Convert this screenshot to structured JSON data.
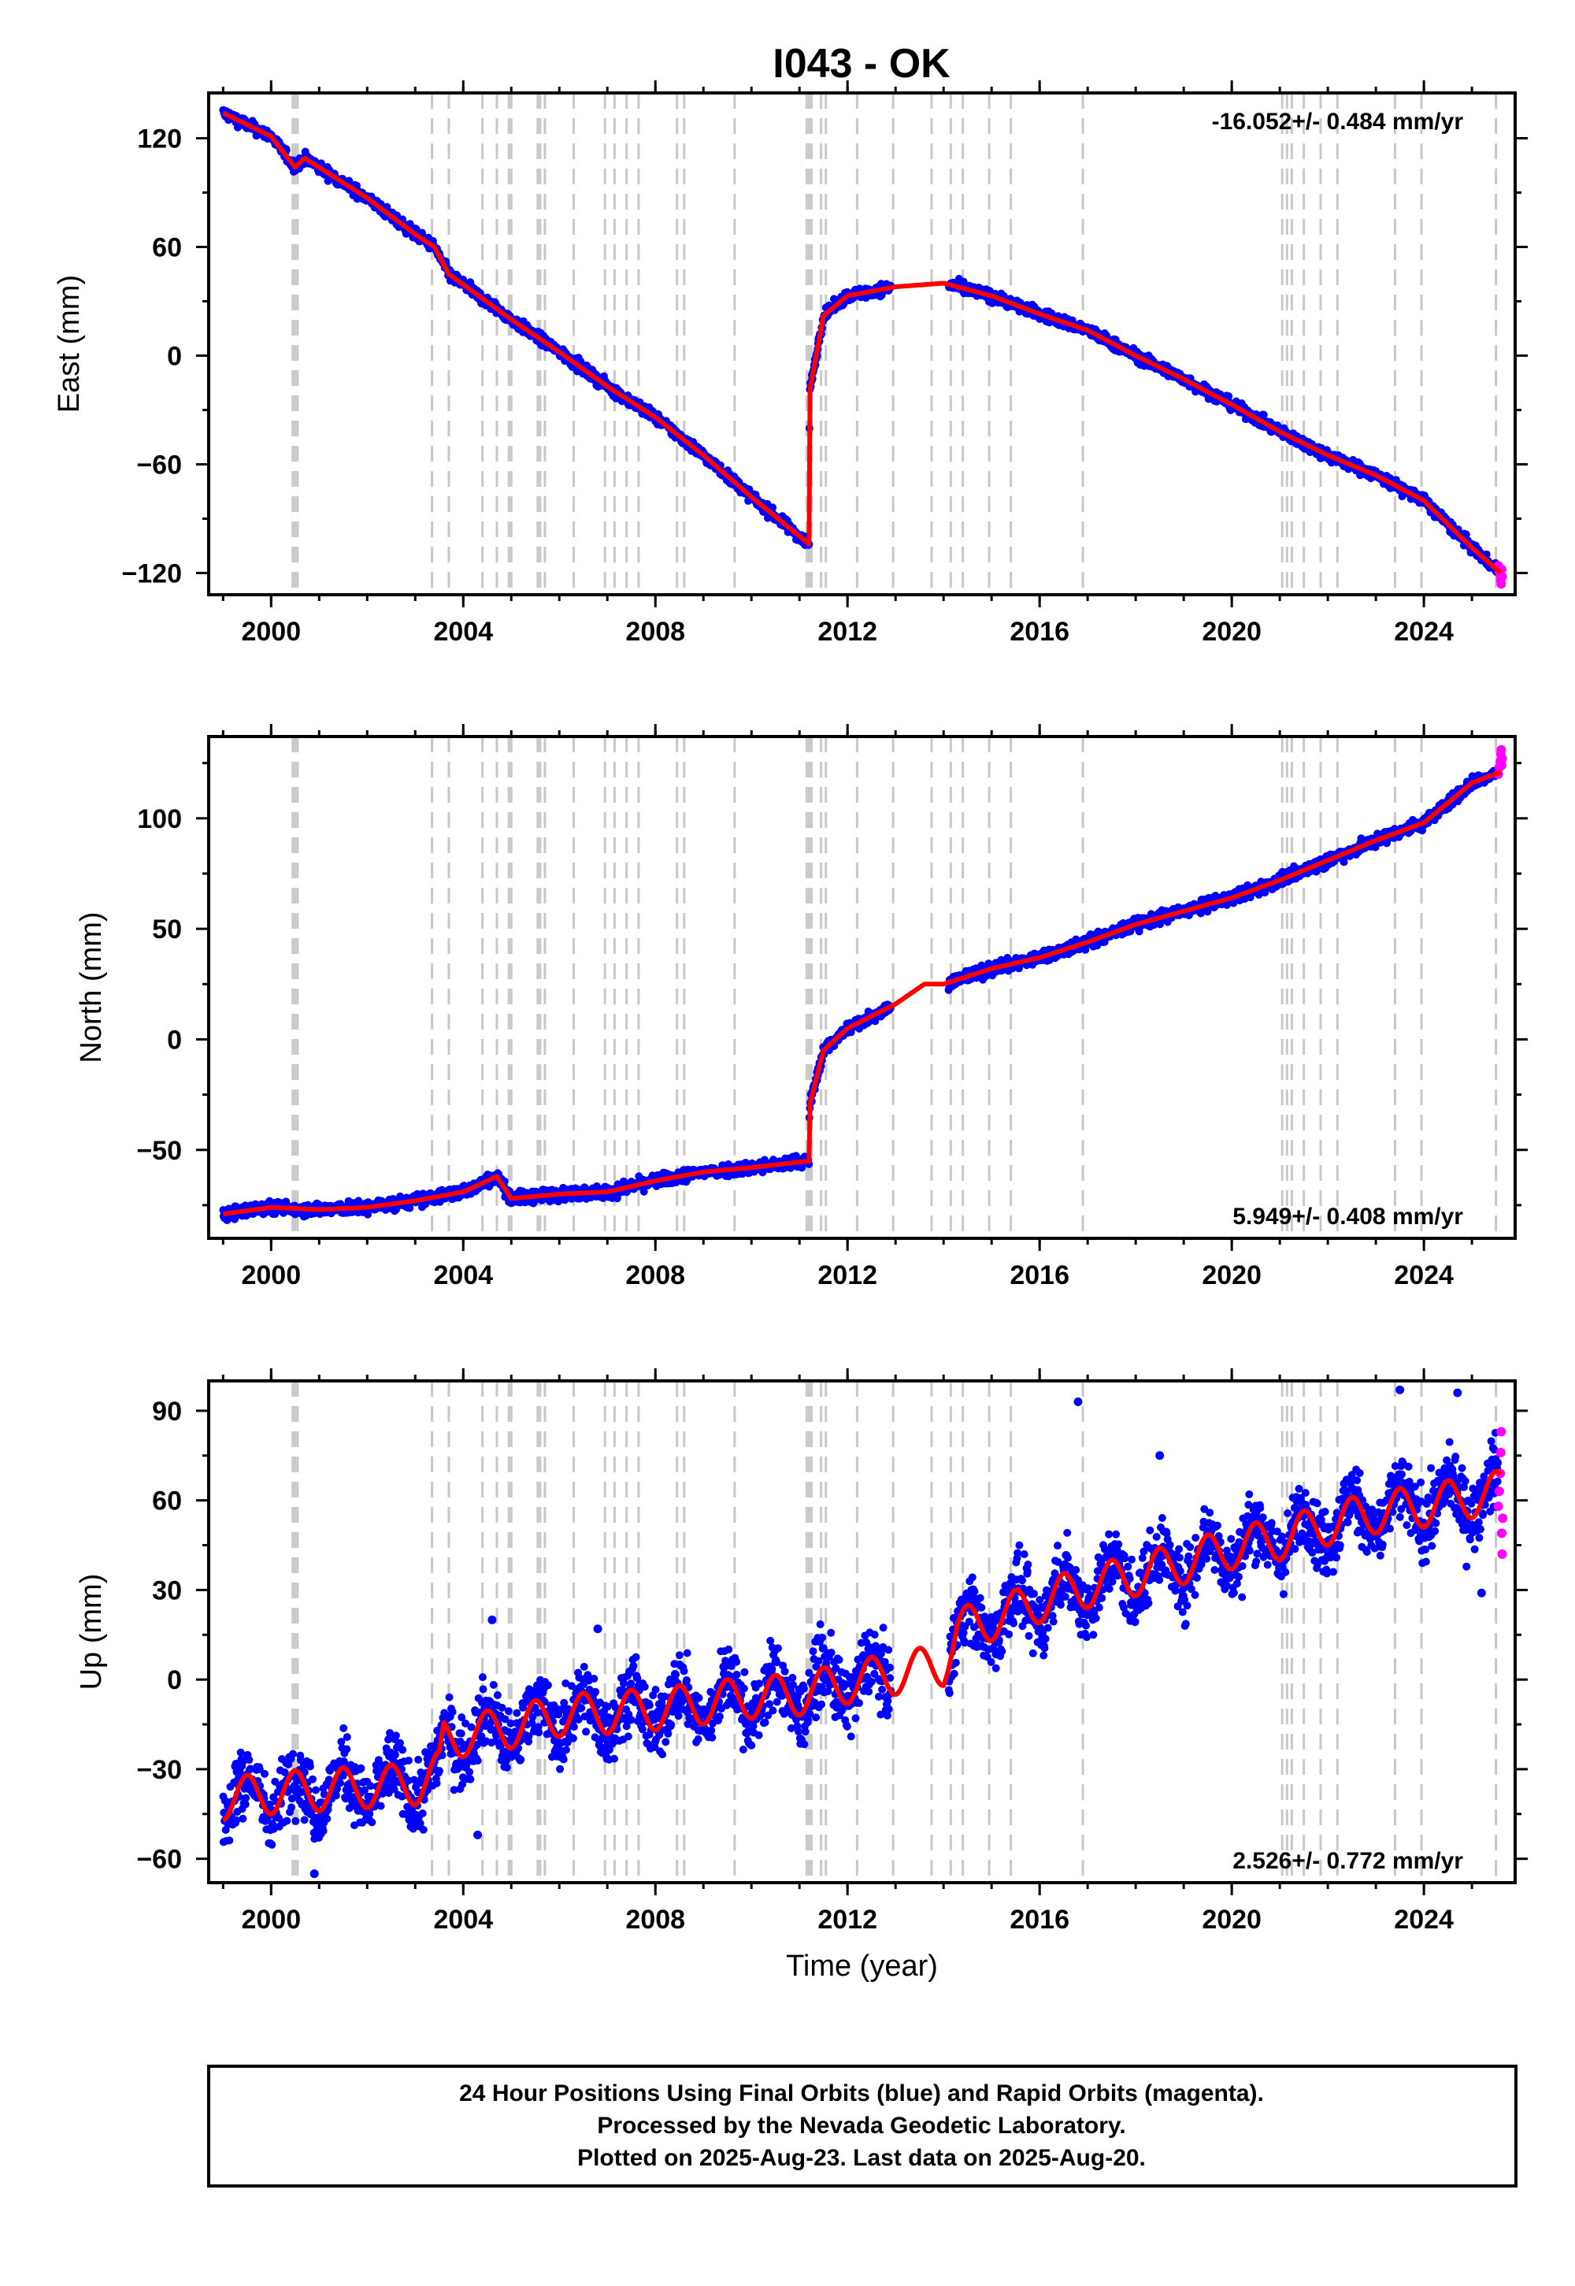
{
  "title": "I043 - OK",
  "colors": {
    "final": "#0000ff",
    "rapid": "#ff00ff",
    "model": "#ff0000",
    "marker": "#c8c8c8"
  },
  "chart_data": [
    {
      "type": "scatter",
      "component": "east",
      "ylabel": "East (mm)",
      "xlim": [
        1998.7,
        2025.9
      ],
      "ylim": [
        -132,
        145
      ],
      "yticks": [
        -120,
        -60,
        0,
        60,
        120
      ],
      "ytick_labels": [
        "−120",
        "−60",
        "0",
        "60",
        "120"
      ],
      "xticks": [
        2000,
        2004,
        2008,
        2012,
        2016,
        2020,
        2024
      ],
      "xtick_labels": [
        "2000",
        "2004",
        "2008",
        "2012",
        "2016",
        "2020",
        "2024"
      ],
      "rate": "-16.052+/- 0.484 mm/yr",
      "rate_position": "top-right",
      "noise": 2.2,
      "trend": [
        [
          1999.0,
          134
        ],
        [
          2000.0,
          121
        ],
        [
          2000.5,
          104
        ],
        [
          2000.7,
          109
        ],
        [
          2002.0,
          87
        ],
        [
          2003.0,
          67
        ],
        [
          2003.4,
          60
        ],
        [
          2003.7,
          45
        ],
        [
          2005.0,
          20
        ],
        [
          2006.0,
          2
        ],
        [
          2007.0,
          -17
        ],
        [
          2008.0,
          -34
        ],
        [
          2009.0,
          -55
        ],
        [
          2010.0,
          -78
        ],
        [
          2011.2,
          -104
        ],
        [
          2011.21,
          -20
        ],
        [
          2011.5,
          22
        ],
        [
          2012.0,
          33
        ],
        [
          2013.0,
          38
        ],
        [
          2014.0,
          40
        ],
        [
          2015.0,
          33
        ],
        [
          2016.0,
          23
        ],
        [
          2017.0,
          14
        ],
        [
          2018.0,
          0
        ],
        [
          2019.0,
          -13
        ],
        [
          2020.0,
          -27
        ],
        [
          2021.0,
          -42
        ],
        [
          2022.0,
          -55
        ],
        [
          2023.0,
          -66
        ],
        [
          2024.0,
          -80
        ],
        [
          2025.0,
          -106
        ],
        [
          2025.6,
          -120
        ]
      ],
      "rapid_points": [
        [
          2025.55,
          -116
        ],
        [
          2025.57,
          -119
        ],
        [
          2025.59,
          -121
        ],
        [
          2025.6,
          -124
        ],
        [
          2025.61,
          -126
        ],
        [
          2025.62,
          -118
        ],
        [
          2025.63,
          -122
        ]
      ]
    },
    {
      "type": "scatter",
      "component": "north",
      "ylabel": "North (mm)",
      "xlim": [
        1998.7,
        2025.9
      ],
      "ylim": [
        -90,
        137
      ],
      "yticks": [
        -50,
        0,
        50,
        100
      ],
      "ytick_labels": [
        "−50",
        "0",
        "50",
        "100"
      ],
      "xticks": [
        2000,
        2004,
        2008,
        2012,
        2016,
        2020,
        2024
      ],
      "xtick_labels": [
        "2000",
        "2004",
        "2008",
        "2012",
        "2016",
        "2020",
        "2024"
      ],
      "rate": "5.949+/- 0.408 mm/yr",
      "rate_position": "bottom-right",
      "noise": 2.0,
      "trend": [
        [
          1999.0,
          -79
        ],
        [
          2000.0,
          -76
        ],
        [
          2001.0,
          -77
        ],
        [
          2002.0,
          -76
        ],
        [
          2003.0,
          -73
        ],
        [
          2004.0,
          -69
        ],
        [
          2004.7,
          -62
        ],
        [
          2005.0,
          -72
        ],
        [
          2006.0,
          -70
        ],
        [
          2007.0,
          -69
        ],
        [
          2008.0,
          -64
        ],
        [
          2009.0,
          -60
        ],
        [
          2010.0,
          -58
        ],
        [
          2011.2,
          -55
        ],
        [
          2011.21,
          -30
        ],
        [
          2011.5,
          -5
        ],
        [
          2012.0,
          5
        ],
        [
          2013.0,
          16
        ],
        [
          2013.6,
          25
        ],
        [
          2014.0,
          25
        ],
        [
          2015.0,
          32
        ],
        [
          2016.0,
          37
        ],
        [
          2017.0,
          44
        ],
        [
          2018.0,
          52
        ],
        [
          2019.0,
          58
        ],
        [
          2020.0,
          64
        ],
        [
          2021.0,
          72
        ],
        [
          2022.0,
          81
        ],
        [
          2023.0,
          90
        ],
        [
          2024.0,
          98
        ],
        [
          2025.0,
          116
        ],
        [
          2025.6,
          121
        ]
      ],
      "rapid_points": [
        [
          2025.55,
          120
        ],
        [
          2025.57,
          123
        ],
        [
          2025.59,
          126
        ],
        [
          2025.6,
          129
        ],
        [
          2025.61,
          131
        ],
        [
          2025.62,
          124
        ],
        [
          2025.63,
          127
        ]
      ]
    },
    {
      "type": "scatter",
      "component": "up",
      "ylabel": "Up (mm)",
      "xlabel": "Time (year)",
      "xlim": [
        1998.7,
        2025.9
      ],
      "ylim": [
        -68,
        100
      ],
      "yticks": [
        -60,
        -30,
        0,
        30,
        60,
        90
      ],
      "ytick_labels": [
        "−60",
        "−30",
        "0",
        "30",
        "60",
        "90"
      ],
      "xticks": [
        2000,
        2004,
        2008,
        2012,
        2016,
        2020,
        2024
      ],
      "xtick_labels": [
        "2000",
        "2004",
        "2008",
        "2012",
        "2016",
        "2020",
        "2024"
      ],
      "rate": "2.526+/- 0.772 mm/yr",
      "rate_position": "bottom-right",
      "noise": 8.0,
      "seasonal_amplitude": 7,
      "trend": [
        [
          1999.0,
          -40
        ],
        [
          2000.0,
          -38
        ],
        [
          2001.0,
          -37
        ],
        [
          2002.0,
          -36
        ],
        [
          2003.0,
          -35
        ],
        [
          2003.5,
          -31
        ],
        [
          2003.6,
          -20
        ],
        [
          2005.0,
          -16
        ],
        [
          2006.0,
          -12
        ],
        [
          2007.0,
          -11
        ],
        [
          2008.0,
          -10
        ],
        [
          2009.0,
          -8
        ],
        [
          2010.0,
          -6
        ],
        [
          2011.0,
          -5
        ],
        [
          2012.0,
          -1
        ],
        [
          2013.0,
          2
        ],
        [
          2014.0,
          5
        ],
        [
          2014.3,
          17
        ],
        [
          2015.0,
          20
        ],
        [
          2016.0,
          26
        ],
        [
          2017.0,
          31
        ],
        [
          2018.0,
          35
        ],
        [
          2019.0,
          39
        ],
        [
          2020.0,
          44
        ],
        [
          2021.0,
          47
        ],
        [
          2022.0,
          52
        ],
        [
          2023.0,
          56
        ],
        [
          2024.0,
          58
        ],
        [
          2025.6,
          63
        ]
      ],
      "rapid_points": [
        [
          2025.55,
          58
        ],
        [
          2025.57,
          63
        ],
        [
          2025.59,
          69
        ],
        [
          2025.6,
          76
        ],
        [
          2025.61,
          83
        ],
        [
          2025.62,
          49
        ],
        [
          2025.63,
          42
        ],
        [
          2025.64,
          54
        ]
      ],
      "outliers": [
        [
          2004.6,
          20
        ],
        [
          2006.8,
          17
        ],
        [
          2016.8,
          93
        ],
        [
          2018.5,
          75
        ],
        [
          2023.5,
          97
        ],
        [
          2024.7,
          96
        ],
        [
          2025.2,
          29
        ],
        [
          2004.3,
          -52
        ],
        [
          2000.9,
          -65
        ]
      ]
    }
  ],
  "equipment_markers": [
    2000.45,
    2000.5,
    2000.55,
    2003.35,
    2003.7,
    2004.4,
    2004.7,
    2004.95,
    2005.0,
    2005.55,
    2005.6,
    2005.7,
    2006.3,
    2006.95,
    2007.15,
    2007.4,
    2007.65,
    2008.45,
    2008.6,
    2009.65,
    2011.15,
    2011.2,
    2011.25,
    2011.45,
    2011.55,
    2012.2,
    2012.95,
    2013.75,
    2014.15,
    2014.4,
    2014.95,
    2015.4,
    2016.9,
    2021.05,
    2021.15,
    2021.25,
    2021.5,
    2021.85,
    2022.2,
    2023.4,
    2023.95,
    2025.5
  ],
  "footer": {
    "line1": "24 Hour Positions Using Final Orbits (blue) and Rapid Orbits (magenta).",
    "line2": "Processed by the Nevada Geodetic Laboratory.",
    "line3": "Plotted on 2025-Aug-23. Last data on 2025-Aug-20."
  }
}
